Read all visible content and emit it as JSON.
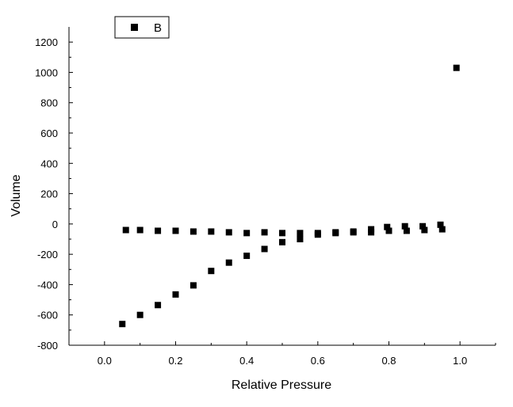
{
  "chart_data": {
    "type": "scatter",
    "title": "",
    "xlabel": "Relative Pressure",
    "ylabel": "Volume",
    "xlim": [
      -0.1,
      1.1
    ],
    "ylim": [
      -800,
      1300
    ],
    "xticks": [
      0.0,
      0.2,
      0.4,
      0.6,
      0.8,
      1.0
    ],
    "xtick_labels": [
      "0.0",
      "0.2",
      "0.4",
      "0.6",
      "0.8",
      "1.0"
    ],
    "yticks": [
      -800,
      -600,
      -400,
      -200,
      0,
      200,
      400,
      600,
      800,
      1000,
      1200
    ],
    "ytick_labels": [
      "-800",
      "-600",
      "-400",
      "-200",
      "0",
      "200",
      "400",
      "600",
      "800",
      "1000",
      "1200"
    ],
    "grid": false,
    "legend": {
      "placement": "top-left",
      "entries": [
        "B"
      ]
    },
    "series": [
      {
        "name": "B",
        "color": "#000000",
        "marker": "square",
        "points": [
          [
            0.05,
            -660
          ],
          [
            0.1,
            -600
          ],
          [
            0.15,
            -535
          ],
          [
            0.2,
            -465
          ],
          [
            0.25,
            -405
          ],
          [
            0.3,
            -310
          ],
          [
            0.35,
            -255
          ],
          [
            0.4,
            -210
          ],
          [
            0.45,
            -165
          ],
          [
            0.5,
            -120
          ],
          [
            0.55,
            -100
          ],
          [
            0.6,
            -70
          ],
          [
            0.65,
            -60
          ],
          [
            0.7,
            -55
          ],
          [
            0.75,
            -55
          ],
          [
            0.8,
            -45
          ],
          [
            0.85,
            -45
          ],
          [
            0.9,
            -40
          ],
          [
            0.95,
            -35
          ],
          [
            0.99,
            1030
          ],
          [
            0.945,
            -5
          ],
          [
            0.895,
            -15
          ],
          [
            0.845,
            -15
          ],
          [
            0.795,
            -20
          ],
          [
            0.75,
            -35
          ],
          [
            0.7,
            -50
          ],
          [
            0.65,
            -55
          ],
          [
            0.6,
            -60
          ],
          [
            0.55,
            -60
          ],
          [
            0.5,
            -60
          ],
          [
            0.45,
            -55
          ],
          [
            0.4,
            -60
          ],
          [
            0.35,
            -55
          ],
          [
            0.3,
            -50
          ],
          [
            0.25,
            -50
          ],
          [
            0.2,
            -45
          ],
          [
            0.15,
            -45
          ],
          [
            0.1,
            -40
          ],
          [
            0.06,
            -40
          ]
        ]
      }
    ]
  }
}
